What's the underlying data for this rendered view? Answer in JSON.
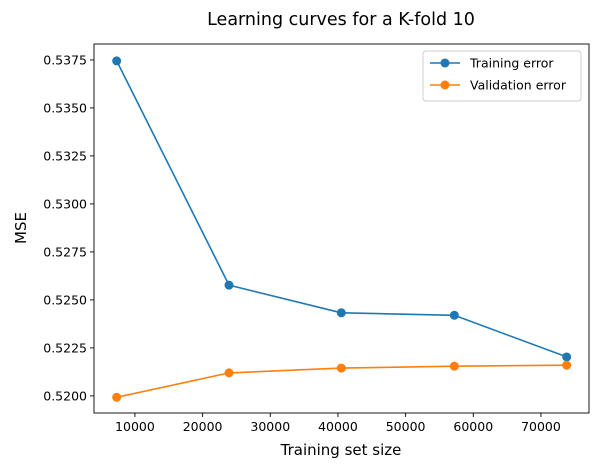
{
  "chart_data": {
    "type": "line",
    "title": "Learning curves for a K-fold 10",
    "xlabel": "Training set size",
    "ylabel": "MSE",
    "xlim": [
      3950,
      77100
    ],
    "ylim": [
      0.51911,
      0.53833
    ],
    "xticks": [
      10000,
      20000,
      30000,
      40000,
      50000,
      60000,
      70000
    ],
    "xtick_labels": [
      "10000",
      "20000",
      "30000",
      "40000",
      "50000",
      "60000",
      "70000"
    ],
    "yticks": [
      0.52,
      0.5225,
      0.525,
      0.5275,
      0.53,
      0.5325,
      0.535,
      0.5375
    ],
    "ytick_labels": [
      "0.5200",
      "0.5225",
      "0.5250",
      "0.5275",
      "0.5300",
      "0.5325",
      "0.5350",
      "0.5375"
    ],
    "grid": false,
    "legend_position": "top-right",
    "x": [
      7300,
      23900,
      40500,
      57200,
      73800
    ],
    "series": [
      {
        "name": "Training error",
        "color": "#1f77b4",
        "values": [
          0.53745,
          0.52577,
          0.52433,
          0.5242,
          0.52203
        ]
      },
      {
        "name": "Validation error",
        "color": "#ff7f0e",
        "values": [
          0.51993,
          0.5212,
          0.52145,
          0.52155,
          0.5216
        ]
      }
    ]
  }
}
